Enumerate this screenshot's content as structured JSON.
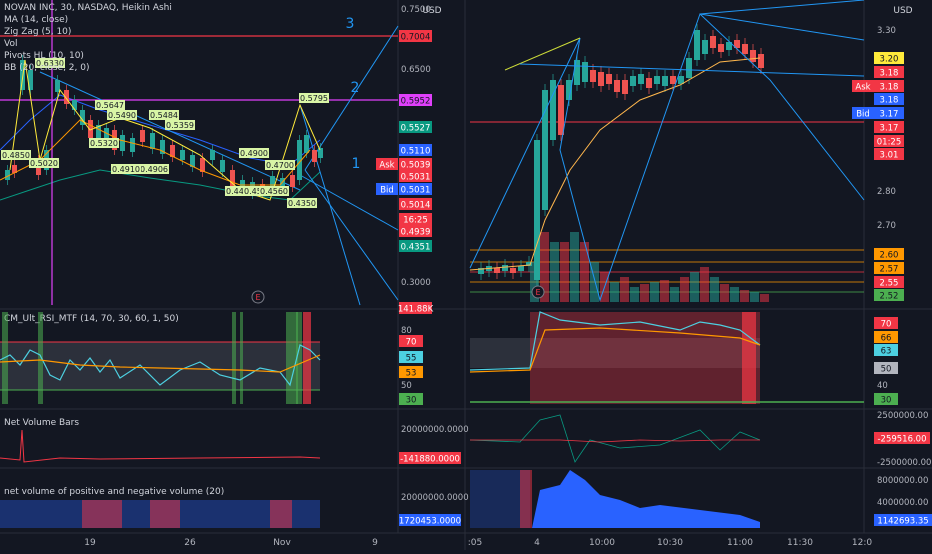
{
  "legend": {
    "symbol": "NOVAN INC, 30, NASDAQ, Heikin Ashi",
    "indicators": [
      "MA (14, close)",
      "Zig Zag (5, 10)",
      "Vol",
      "Pivots HL (10, 10)",
      "BB (20, close, 2, 0)"
    ]
  },
  "left_chart": {
    "currency": "USD",
    "y_ticks": [
      "0.7500",
      "0.6500",
      "0.3000"
    ],
    "price_labels": [
      {
        "text": "0.7004",
        "bg": "#f23645",
        "fg": "#131722"
      },
      {
        "text": "0.5952",
        "bg": "#e040fb",
        "fg": "#131722"
      },
      {
        "text": "0.5527",
        "bg": "#089981",
        "fg": "#ffffff"
      },
      {
        "text": "0.5110",
        "bg": "#2962ff",
        "fg": "#ffffff"
      },
      {
        "text": "0.5039",
        "bg": "#f23645",
        "fg": "#ffffff"
      },
      {
        "text": "0.5031",
        "bg": "#f23645",
        "fg": "#ffffff"
      },
      {
        "text": "0.5031",
        "bg": "#2962ff",
        "fg": "#ffffff"
      },
      {
        "text": "0.5014",
        "bg": "#f23645",
        "fg": "#ffffff"
      },
      {
        "text": "16:25",
        "bg": "#f23645",
        "fg": "#ffffff"
      },
      {
        "text": "0.4939",
        "bg": "#f23645",
        "fg": "#ffffff"
      },
      {
        "text": "0.4351",
        "bg": "#089981",
        "fg": "#ffffff"
      },
      {
        "text": "141.88K",
        "bg": "#f23645",
        "fg": "#ffffff"
      }
    ],
    "ask_label": "Ask",
    "bid_label": "Bid",
    "wave_labels": [
      "3",
      "2",
      "1"
    ],
    "pivot_labels": [
      "0.6330",
      "0.5647",
      "0.5490",
      "0.5484",
      "0.5359",
      "0.5320",
      "0.4850",
      "0.5020",
      "0.4900",
      "0.4700",
      "0.4906",
      "0.4910",
      "0.4450",
      "0.4550",
      "0.4560",
      "0.4350",
      "0.5795"
    ],
    "earnings_marker": "E",
    "rsi_title": "CM_Ult_RSI_MTF (14, 70, 30, 60, 1, 50)",
    "rsi_ticks": [
      "80",
      "50",
      "70",
      "55",
      "53",
      "30"
    ],
    "netvol_title": "Net Volume Bars",
    "netvol_ticks": [
      "20000000.0000",
      "-141880.0000"
    ],
    "posneg_title": "net volume of positive and negative volume (20)",
    "posneg_ticks": [
      "20000000.0000",
      "1720453.0000"
    ],
    "x_labels": [
      "19",
      "26",
      "Nov",
      "9"
    ]
  },
  "right_chart": {
    "currency": "USD",
    "y_ticks": [
      "3.30",
      "3.20",
      "2.80",
      "2.70"
    ],
    "price_labels": [
      {
        "text": "3.20",
        "bg": "#ffeb3b",
        "fg": "#131722"
      },
      {
        "text": "3.18",
        "bg": "#f23645",
        "fg": "#ffffff"
      },
      {
        "text": "3.18",
        "bg": "#f23645",
        "fg": "#ffffff"
      },
      {
        "text": "3.18",
        "bg": "#2962ff",
        "fg": "#ffffff"
      },
      {
        "text": "3.17",
        "bg": "#2962ff",
        "fg": "#ffffff"
      },
      {
        "text": "3.17",
        "bg": "#f23645",
        "fg": "#ffffff"
      },
      {
        "text": "01:25",
        "bg": "#f23645",
        "fg": "#ffffff"
      },
      {
        "text": "3.01",
        "bg": "#f23645",
        "fg": "#ffffff"
      },
      {
        "text": "2.60",
        "bg": "#ff9800",
        "fg": "#131722"
      },
      {
        "text": "2.57",
        "bg": "#ff9800",
        "fg": "#131722"
      },
      {
        "text": "2.55",
        "bg": "#f23645",
        "fg": "#ffffff"
      },
      {
        "text": "2.52",
        "bg": "#4caf50",
        "fg": "#131722"
      }
    ],
    "ask_label": "Ask",
    "bid_label": "Bid",
    "earnings_marker": "E",
    "rsi_ticks": [
      "70",
      "66",
      "63",
      "50",
      "40",
      "30"
    ],
    "netvol_ticks": [
      "2500000.00",
      "-259516.00",
      "-2500000.00"
    ],
    "posneg_ticks": [
      "8000000.00",
      "4000000.00",
      "1142693.35"
    ],
    "x_labels": [
      ":05",
      "4",
      "10:00",
      "10:30",
      "11:00",
      "11:30",
      "12:0"
    ]
  }
}
